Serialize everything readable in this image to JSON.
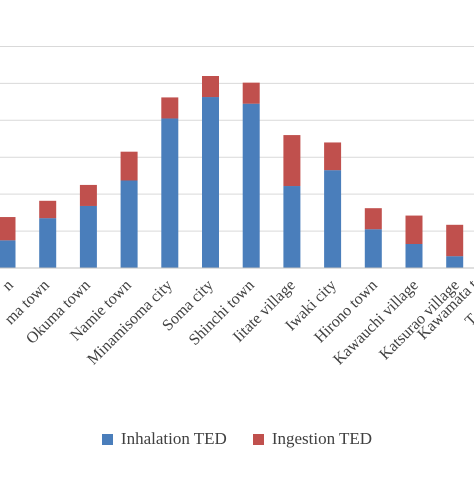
{
  "chart_data": {
    "type": "bar",
    "stacked": true,
    "grid": true,
    "legend_position": "bottom",
    "ylim": [
      0,
      6.5
    ],
    "categories": [
      "Futaba town",
      "Okuma town",
      "Namie town",
      "Minamisoma city",
      "Soma city",
      "Shinchi town",
      "Iitate village",
      "Iwaki city",
      "Hirono town",
      "Kawauchi village",
      "Katsurao village",
      "Kawamata town"
    ],
    "category_labels_visible": [
      "n",
      "ma town",
      "Okuma town",
      "Namie town",
      "Minamisoma city",
      "Soma city",
      "Shinchi town",
      "Iitate village",
      "Iwaki city",
      "Hirono town",
      "Kawauchi village",
      "Katsurao village",
      "Kawamata t",
      "T"
    ],
    "series": [
      {
        "name": "Inhalation TED",
        "color": "#4a7ebb",
        "values": [
          0.75,
          1.35,
          1.68,
          2.37,
          4.05,
          4.63,
          4.45,
          2.22,
          2.65,
          1.05,
          0.65,
          0.32
        ]
      },
      {
        "name": "Ingestion TED",
        "color": "#c0504d",
        "values": [
          0.63,
          0.47,
          0.57,
          0.78,
          0.57,
          0.57,
          0.57,
          1.38,
          0.75,
          0.57,
          0.77,
          0.85
        ]
      }
    ]
  }
}
